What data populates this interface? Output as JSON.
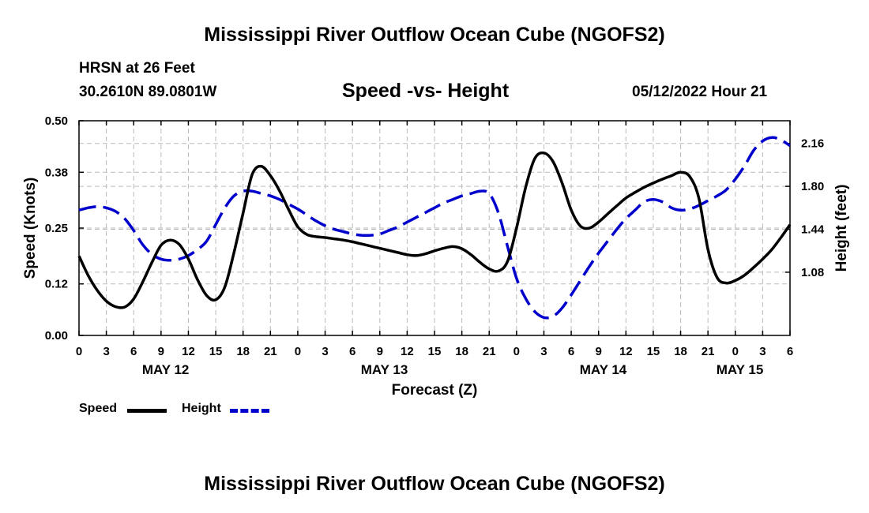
{
  "header": {
    "title": "Mississippi River Outflow Ocean Cube (NGOFS2)",
    "station": "HRSN at 26 Feet",
    "coords": "30.2610N  89.0801W",
    "subtitle": "Speed -vs- Height",
    "datetime": "05/12/2022 Hour 21"
  },
  "footer": {
    "title": "Mississippi River Outflow Ocean Cube (NGOFS2)"
  },
  "colors": {
    "speed": "#000000",
    "height": "#0000cc",
    "grid": "#bbbbbb"
  },
  "chart_data": {
    "type": "line",
    "xlabel": "Forecast (Z)",
    "ylabel_left": "Speed (Knots)",
    "ylabel_right": "Height (feet)",
    "x_range": [
      0,
      78
    ],
    "ylim_left": [
      0,
      0.5
    ],
    "ylim_right": [
      0.55,
      2.35
    ],
    "yticks_left": [
      0.0,
      0.12,
      0.25,
      0.38,
      0.5
    ],
    "yticks_left_labels": [
      "0.00",
      "0.12",
      "0.25",
      "0.38",
      "0.50"
    ],
    "yticks_right": [
      1.08,
      1.44,
      1.8,
      2.16
    ],
    "yticks_right_labels": [
      "1.08",
      "1.44",
      "1.80",
      "2.16"
    ],
    "x_ticks": [
      0,
      3,
      6,
      9,
      12,
      15,
      18,
      21,
      24,
      27,
      30,
      33,
      36,
      39,
      42,
      45,
      48,
      51,
      54,
      57,
      60,
      63,
      66,
      69,
      72,
      75,
      78
    ],
    "x_tick_labels": [
      "0",
      "3",
      "6",
      "9",
      "12",
      "15",
      "18",
      "21",
      "0",
      "3",
      "6",
      "9",
      "12",
      "15",
      "18",
      "21",
      "0",
      "3",
      "6",
      "9",
      "12",
      "15",
      "18",
      "21",
      "0",
      "3",
      "6"
    ],
    "date_labels": [
      {
        "x": 9.5,
        "label": "MAY 12"
      },
      {
        "x": 33.5,
        "label": "MAY 13"
      },
      {
        "x": 57.5,
        "label": "MAY 14"
      },
      {
        "x": 72.5,
        "label": "MAY 15"
      }
    ],
    "legend": [
      {
        "name": "Speed",
        "style": "solid"
      },
      {
        "name": "Height",
        "style": "dashed"
      }
    ],
    "series": [
      {
        "name": "Speed",
        "axis": "left",
        "x": [
          0,
          1,
          2,
          3,
          4,
          5,
          6,
          7,
          8,
          9,
          10,
          11,
          12,
          13,
          14,
          15,
          16,
          17,
          18,
          19,
          20,
          21,
          22,
          23,
          24,
          25,
          26,
          27,
          28,
          29,
          30,
          31,
          32,
          33,
          34,
          35,
          36,
          37,
          38,
          39,
          40,
          41,
          42,
          43,
          44,
          45,
          46,
          47,
          48,
          49,
          50,
          51,
          52,
          53,
          54,
          55,
          56,
          57,
          58,
          59,
          60,
          61,
          62,
          63,
          64,
          65,
          66,
          67,
          68,
          69,
          70,
          71,
          72,
          73,
          74,
          75,
          76,
          77,
          78
        ],
        "values": [
          0.185,
          0.14,
          0.105,
          0.08,
          0.067,
          0.066,
          0.085,
          0.125,
          0.17,
          0.21,
          0.222,
          0.212,
          0.178,
          0.13,
          0.093,
          0.083,
          0.113,
          0.193,
          0.285,
          0.375,
          0.394,
          0.372,
          0.337,
          0.293,
          0.253,
          0.235,
          0.23,
          0.228,
          0.225,
          0.222,
          0.218,
          0.213,
          0.208,
          0.203,
          0.198,
          0.193,
          0.188,
          0.186,
          0.19,
          0.197,
          0.203,
          0.207,
          0.202,
          0.188,
          0.17,
          0.155,
          0.15,
          0.172,
          0.25,
          0.345,
          0.412,
          0.425,
          0.405,
          0.355,
          0.292,
          0.255,
          0.25,
          0.264,
          0.283,
          0.302,
          0.32,
          0.333,
          0.345,
          0.355,
          0.364,
          0.372,
          0.38,
          0.37,
          0.32,
          0.2,
          0.135,
          0.122,
          0.128,
          0.14,
          0.158,
          0.178,
          0.2,
          0.228,
          0.258
        ]
      },
      {
        "name": "Height",
        "axis": "right",
        "x": [
          0,
          1,
          2,
          3,
          4,
          5,
          6,
          7,
          8,
          9,
          10,
          11,
          12,
          13,
          14,
          15,
          16,
          17,
          18,
          19,
          20,
          21,
          22,
          23,
          24,
          25,
          26,
          27,
          28,
          29,
          30,
          31,
          32,
          33,
          34,
          35,
          36,
          37,
          38,
          39,
          40,
          41,
          42,
          43,
          44,
          45,
          46,
          47,
          48,
          49,
          50,
          51,
          52,
          53,
          54,
          55,
          56,
          57,
          58,
          59,
          60,
          61,
          62,
          63,
          64,
          65,
          66,
          67,
          68,
          69,
          70,
          71,
          72,
          73,
          74,
          75,
          76,
          77,
          78
        ],
        "values": [
          1.6,
          1.62,
          1.63,
          1.62,
          1.59,
          1.53,
          1.43,
          1.31,
          1.23,
          1.19,
          1.18,
          1.19,
          1.22,
          1.27,
          1.34,
          1.48,
          1.62,
          1.72,
          1.76,
          1.76,
          1.74,
          1.72,
          1.69,
          1.65,
          1.61,
          1.56,
          1.51,
          1.47,
          1.44,
          1.42,
          1.4,
          1.39,
          1.39,
          1.4,
          1.43,
          1.46,
          1.5,
          1.54,
          1.58,
          1.62,
          1.66,
          1.69,
          1.72,
          1.74,
          1.76,
          1.74,
          1.58,
          1.3,
          1.03,
          0.86,
          0.75,
          0.7,
          0.71,
          0.78,
          0.89,
          1.01,
          1.13,
          1.24,
          1.34,
          1.44,
          1.53,
          1.6,
          1.67,
          1.69,
          1.67,
          1.62,
          1.6,
          1.61,
          1.64,
          1.68,
          1.72,
          1.77,
          1.86,
          1.97,
          2.1,
          2.18,
          2.21,
          2.19,
          2.14
        ]
      }
    ]
  }
}
